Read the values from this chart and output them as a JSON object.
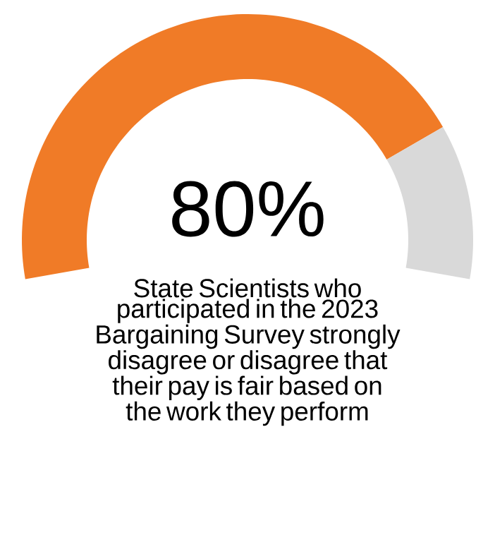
{
  "chart_data": {
    "type": "donut",
    "categories": [
      null,
      null
    ],
    "values": [
      80,
      20
    ],
    "colors": [
      "#f07b27",
      "#d9d9d9"
    ],
    "value_labels": [
      "80%",
      null
    ],
    "annotations": [
      "State Scientists who participated in the 2023 Bargaining Survey strongly disagree or disagree that their pay is fair based on the work they perform"
    ]
  }
}
